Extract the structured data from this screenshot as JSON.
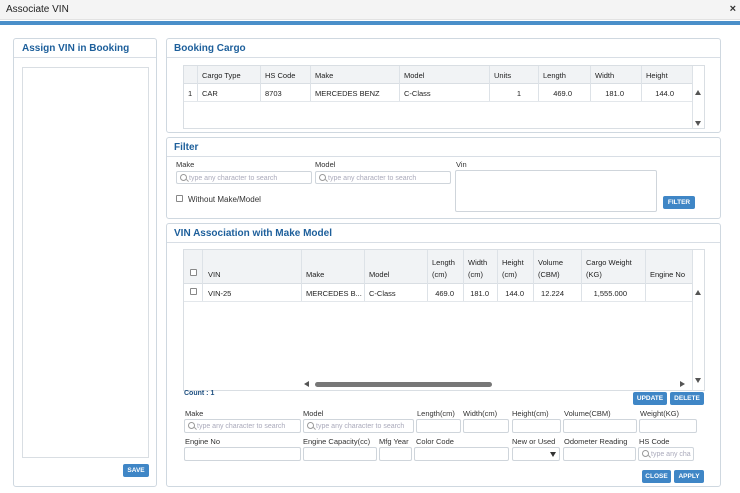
{
  "window": {
    "title": "Associate VIN",
    "close_glyph": "×"
  },
  "assign_panel": {
    "title": "Assign VIN in Booking",
    "save_label": "SAVE"
  },
  "booking_cargo": {
    "title": "Booking Cargo",
    "columns": [
      "Cargo Type",
      "HS Code",
      "Make",
      "Model",
      "Units",
      "Length",
      "Width",
      "Height"
    ],
    "rows": [
      {
        "no": "1",
        "cargo_type": "CAR",
        "hs_code": "8703",
        "make": "MERCEDES BENZ",
        "model": "C-Class",
        "units": "1",
        "length": "469.0",
        "width": "181.0",
        "height": "144.0"
      }
    ]
  },
  "filter": {
    "title": "Filter",
    "make_label": "Make",
    "model_label": "Model",
    "vin_label": "Vin",
    "make_placeholder": "type any character to search",
    "model_placeholder": "type any character to search",
    "without_label": "Without Make/Model",
    "filter_button": "FILTER"
  },
  "vin_assoc": {
    "title": "VIN Association with Make Model",
    "columns": {
      "vin": "VIN",
      "make": "Make",
      "model": "Model",
      "length_a": "Length",
      "length_b": "(cm)",
      "width_a": "Width",
      "width_b": "(cm)",
      "height_a": "Height",
      "height_b": "(cm)",
      "volume_a": "Volume",
      "volume_b": "(CBM)",
      "weight_a": "Cargo Weight",
      "weight_b": "(KG)",
      "engine": "Engine No"
    },
    "rows": [
      {
        "vin": "VIN-25",
        "make": "MERCEDES B...",
        "model": "C-Class",
        "length": "469.0",
        "width": "181.0",
        "height": "144.0",
        "volume": "12.224",
        "weight": "1,555.000"
      }
    ],
    "count_label": "Count :",
    "count_value": "1",
    "update_button": "UPDATE",
    "delete_button": "DELETE"
  },
  "form": {
    "make_label": "Make",
    "model_label": "Model",
    "length_label": "Length(cm)",
    "width_label": "Width(cm)",
    "height_label": "Height(cm)",
    "volume_label": "Volume(CBM)",
    "weight_label": "Weight(KG)",
    "engine_label": "Engine No",
    "capacity_label": "Engine Capacity(cc)",
    "mfg_label": "Mfg Year",
    "color_label": "Color Code",
    "new_used_label": "New or Used",
    "odometer_label": "Odometer Reading",
    "hs_label": "HS Code",
    "make_placeholder": "type any character to search",
    "model_placeholder": "type any character to search",
    "hs_placeholder": "type any cha",
    "close_button": "CLOSE",
    "apply_button": "APPLY"
  }
}
